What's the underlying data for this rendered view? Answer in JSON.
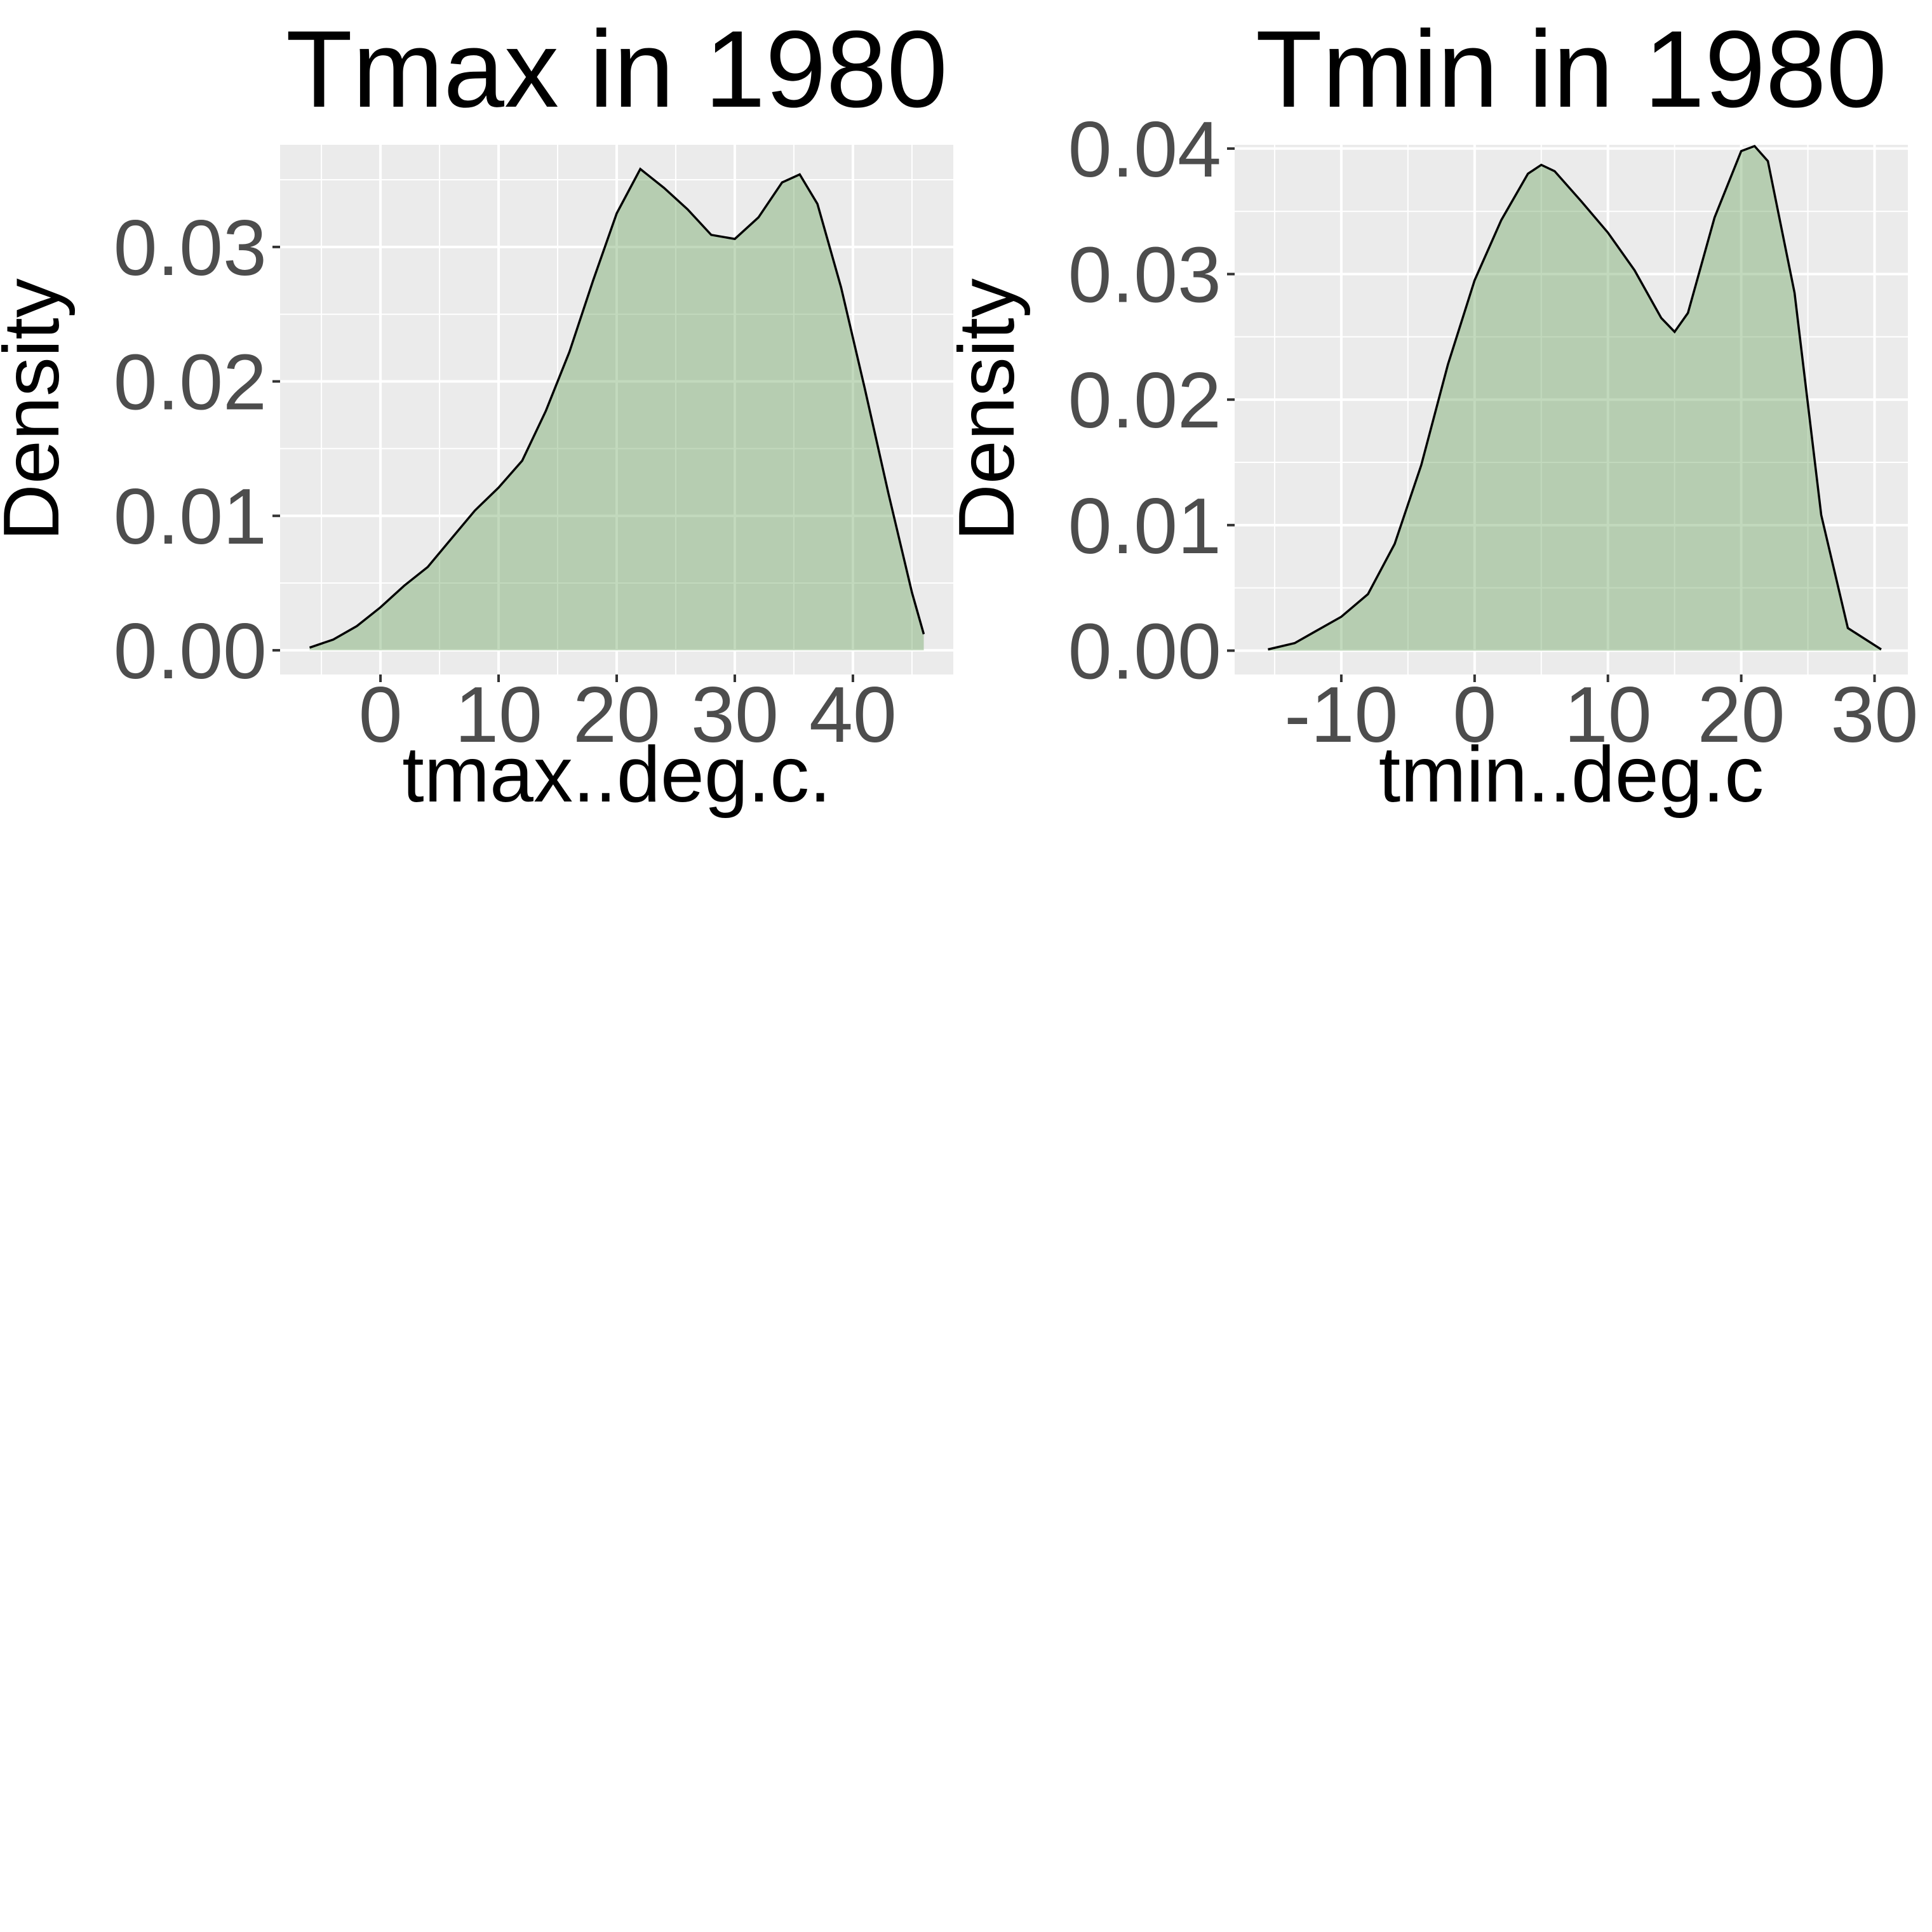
{
  "chart_data": [
    {
      "type": "area",
      "title": "Tmax in 1980",
      "xlabel": "tmax..deg.c.",
      "ylabel": "Density",
      "xlim": [
        -8.5,
        48.5
      ],
      "ylim": [
        -0.0018,
        0.0376
      ],
      "x_ticks": [
        0,
        10,
        20,
        30,
        40
      ],
      "x_tick_labels": [
        "0",
        "10",
        "20",
        "30",
        "40"
      ],
      "y_ticks": [
        0.0,
        0.01,
        0.02,
        0.03
      ],
      "y_tick_labels": [
        "0.00",
        "0.01",
        "0.02",
        "0.03"
      ],
      "grid": true,
      "fill_color": "#66a05a",
      "line_color": "#000000",
      "panel_color": "#ebebeb",
      "x": [
        -6,
        -4,
        -2,
        0,
        2,
        4,
        6,
        8,
        10,
        12,
        14,
        16,
        18,
        20,
        22,
        24,
        26,
        28,
        30,
        32,
        34,
        35.5,
        37,
        39,
        41,
        43,
        45,
        46
      ],
      "values": [
        0.0002,
        0.0008,
        0.0018,
        0.0032,
        0.0048,
        0.0062,
        0.0083,
        0.0104,
        0.0121,
        0.0141,
        0.0178,
        0.0222,
        0.0275,
        0.0325,
        0.0358,
        0.0344,
        0.0328,
        0.0309,
        0.0306,
        0.0322,
        0.0348,
        0.0354,
        0.0332,
        0.027,
        0.0195,
        0.0117,
        0.0043,
        0.0012
      ]
    },
    {
      "type": "area",
      "title": "Tmin in 1980",
      "xlabel": "tmin..deg.c",
      "ylabel": "Density",
      "xlim": [
        -18,
        32.5
      ],
      "ylim": [
        -0.0019,
        0.0403
      ],
      "x_ticks": [
        -10,
        0,
        10,
        20,
        30
      ],
      "x_tick_labels": [
        "-10",
        "0",
        "10",
        "20",
        "30"
      ],
      "y_ticks": [
        0.0,
        0.01,
        0.02,
        0.03,
        0.04
      ],
      "y_tick_labels": [
        "0.00",
        "0.01",
        "0.02",
        "0.03",
        "0.04"
      ],
      "grid": true,
      "fill_color": "#66a05a",
      "line_color": "#000000",
      "panel_color": "#ebebeb",
      "x": [
        -15.5,
        -13.5,
        -12,
        -10,
        -8,
        -6,
        -4,
        -2,
        0,
        2,
        4,
        5,
        6,
        8,
        10,
        12,
        14,
        15,
        16,
        18,
        20,
        21,
        22,
        24,
        26,
        28,
        30.5
      ],
      "values": [
        0.0001,
        0.0006,
        0.0015,
        0.0027,
        0.0045,
        0.0085,
        0.0148,
        0.0228,
        0.0295,
        0.0343,
        0.038,
        0.0387,
        0.0382,
        0.0358,
        0.0333,
        0.0303,
        0.0265,
        0.0254,
        0.0269,
        0.0345,
        0.0398,
        0.0402,
        0.039,
        0.0285,
        0.0108,
        0.0018,
        0.0001
      ]
    }
  ]
}
